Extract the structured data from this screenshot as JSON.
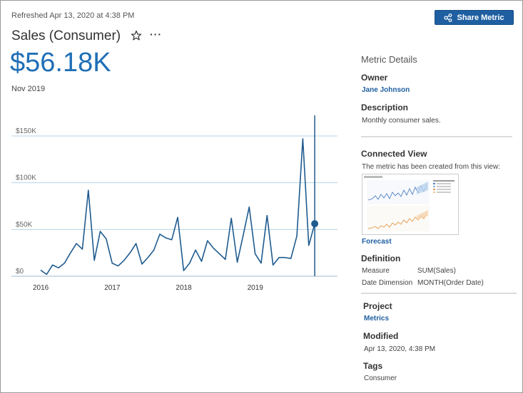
{
  "header": {
    "refreshed": "Refreshed Apr 13, 2020 at 4:38 PM",
    "share_label": "Share Metric"
  },
  "metric": {
    "title": "Sales (Consumer)",
    "value": "$56.18K",
    "period": "Nov 2019"
  },
  "icons": {
    "star": "star-outline-icon",
    "more": "more-horizontal-icon",
    "share": "share-nodes-icon"
  },
  "colors": {
    "accent": "#1f6fb6",
    "button": "#1f5fa1",
    "line": "#1f5b8f"
  },
  "details": {
    "title": "Metric Details",
    "owner_label": "Owner",
    "owner": "Jane Johnson",
    "description_label": "Description",
    "description": "Monthly consumer sales.",
    "connected_view_label": "Connected View",
    "connected_view_text": "The metric has been created from this view:",
    "view_link": "Forecast",
    "definition_label": "Definition",
    "definition": [
      {
        "key": "Measure",
        "value": "SUM(Sales)"
      },
      {
        "key": "Date Dimension",
        "value": "MONTH(Order Date)"
      }
    ],
    "project_label": "Project",
    "project": "Metrics",
    "modified_label": "Modified",
    "modified": "Apr 13, 2020, 4:38 PM",
    "tags_label": "Tags",
    "tags": "Consumer"
  },
  "chart_data": {
    "type": "line",
    "ylim": [
      0,
      160000
    ],
    "y_ticks": [
      0,
      50000,
      100000,
      150000
    ],
    "y_tick_labels": [
      "$0",
      "$50K",
      "$100K",
      "$150K"
    ],
    "x_tick_labels": [
      "2016",
      "2017",
      "2018",
      "2019"
    ],
    "series": [
      {
        "values": [
          6500,
          2000,
          12000,
          9000,
          14000,
          25000,
          35000,
          29000,
          92000,
          17000,
          48000,
          40000,
          14000,
          11000,
          17000,
          25000,
          35000,
          13000,
          20000,
          28000,
          45000,
          41000,
          39000,
          63000,
          6000,
          14000,
          28000,
          16000,
          38000,
          30000,
          24000,
          18000,
          62000,
          15000,
          44000,
          74000,
          24000,
          14000,
          65000,
          12000,
          20000,
          20000,
          19000,
          43000,
          147000,
          33000,
          56180
        ]
      }
    ],
    "highlight": {
      "label": "Nov 2019",
      "value": 56180
    }
  }
}
